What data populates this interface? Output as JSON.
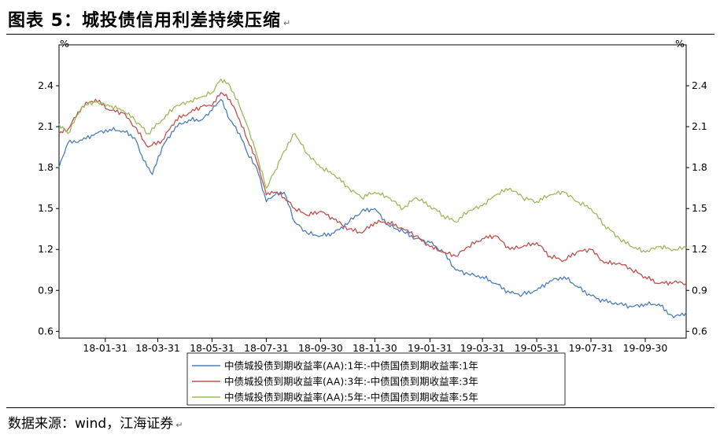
{
  "title": "图表 5：城投债信用利差持续压缩",
  "source": "数据来源：wind，江海证券",
  "chart_data": {
    "type": "line",
    "ylabel_left": "%",
    "ylabel_right": "%",
    "ylim": [
      0.55,
      2.7
    ],
    "yticks": [
      0.6,
      0.9,
      1.2,
      1.5,
      1.8,
      2.1,
      2.4
    ],
    "ytick_labels": [
      "0.6",
      "0.9",
      "1.2",
      "1.5",
      "1.8",
      "2.1",
      "2.4"
    ],
    "xlim": [
      "2017-12-10",
      "2019-11-15"
    ],
    "xticks": [
      "2018-01-31",
      "2018-03-31",
      "2018-05-31",
      "2018-07-31",
      "2018-09-30",
      "2018-11-30",
      "2019-01-31",
      "2019-03-31",
      "2019-05-31",
      "2019-07-31",
      "2019-09-30"
    ],
    "xtick_labels": [
      "18-01-31",
      "18-03-31",
      "18-05-31",
      "18-07-31",
      "18-09-30",
      "18-11-30",
      "19-01-31",
      "19-03-31",
      "19-05-31",
      "19-07-31",
      "19-09-30"
    ],
    "grid": false,
    "legend_position": "bottom",
    "series": [
      {
        "name": "中债城投债到期收益率(AA):1年:-中债国债到期收益率:1年",
        "color": "#4a7ebb",
        "x": [
          "2017-12-10",
          "2017-12-20",
          "2018-01-05",
          "2018-01-20",
          "2018-02-05",
          "2018-02-20",
          "2018-03-05",
          "2018-03-15",
          "2018-03-25",
          "2018-04-05",
          "2018-04-20",
          "2018-05-05",
          "2018-05-20",
          "2018-05-31",
          "2018-06-10",
          "2018-06-20",
          "2018-07-01",
          "2018-07-10",
          "2018-07-20",
          "2018-07-31",
          "2018-08-10",
          "2018-08-20",
          "2018-09-01",
          "2018-09-15",
          "2018-09-30",
          "2018-10-15",
          "2018-11-01",
          "2018-11-15",
          "2018-11-30",
          "2018-12-15",
          "2019-01-01",
          "2019-01-15",
          "2019-01-31",
          "2019-02-15",
          "2019-03-01",
          "2019-03-15",
          "2019-03-31",
          "2019-04-15",
          "2019-05-01",
          "2019-05-15",
          "2019-05-31",
          "2019-06-15",
          "2019-07-01",
          "2019-07-15",
          "2019-07-31",
          "2019-08-15",
          "2019-09-01",
          "2019-09-15",
          "2019-09-30",
          "2019-10-15",
          "2019-11-01",
          "2019-11-15"
        ],
        "values": [
          1.8,
          1.98,
          2.0,
          2.05,
          2.08,
          2.07,
          2.02,
          1.85,
          1.75,
          1.95,
          2.1,
          2.15,
          2.15,
          2.22,
          2.3,
          2.15,
          2.05,
          1.9,
          1.8,
          1.55,
          1.6,
          1.62,
          1.4,
          1.32,
          1.3,
          1.32,
          1.4,
          1.48,
          1.5,
          1.38,
          1.33,
          1.28,
          1.25,
          1.18,
          1.05,
          1.02,
          1.0,
          0.95,
          0.88,
          0.87,
          0.9,
          0.97,
          1.0,
          0.93,
          0.86,
          0.82,
          0.8,
          0.78,
          0.8,
          0.8,
          0.7,
          0.74
        ]
      },
      {
        "name": "中债城投债到期收益率(AA):3年:-中债国债到期收益率:3年",
        "color": "#c0504d",
        "x": [
          "2017-12-10",
          "2017-12-20",
          "2018-01-05",
          "2018-01-20",
          "2018-02-05",
          "2018-02-20",
          "2018-03-05",
          "2018-03-20",
          "2018-04-05",
          "2018-04-20",
          "2018-05-05",
          "2018-05-20",
          "2018-05-31",
          "2018-06-10",
          "2018-06-20",
          "2018-07-01",
          "2018-07-10",
          "2018-07-20",
          "2018-07-31",
          "2018-08-10",
          "2018-08-20",
          "2018-09-01",
          "2018-09-15",
          "2018-09-30",
          "2018-10-15",
          "2018-11-01",
          "2018-11-15",
          "2018-11-30",
          "2018-12-15",
          "2019-01-01",
          "2019-01-15",
          "2019-01-31",
          "2019-02-15",
          "2019-03-01",
          "2019-03-15",
          "2019-03-31",
          "2019-04-15",
          "2019-05-01",
          "2019-05-15",
          "2019-05-31",
          "2019-06-15",
          "2019-07-01",
          "2019-07-15",
          "2019-07-31",
          "2019-08-15",
          "2019-09-01",
          "2019-09-15",
          "2019-09-30",
          "2019-10-15",
          "2019-11-01",
          "2019-11-15"
        ],
        "values": [
          2.05,
          2.08,
          2.25,
          2.3,
          2.22,
          2.2,
          2.1,
          1.95,
          2.0,
          2.15,
          2.2,
          2.25,
          2.25,
          2.35,
          2.3,
          2.15,
          2.0,
          1.85,
          1.6,
          1.62,
          1.58,
          1.5,
          1.45,
          1.48,
          1.42,
          1.35,
          1.32,
          1.4,
          1.4,
          1.35,
          1.3,
          1.22,
          1.18,
          1.15,
          1.22,
          1.28,
          1.3,
          1.2,
          1.22,
          1.25,
          1.15,
          1.12,
          1.18,
          1.2,
          1.1,
          1.1,
          1.05,
          1.0,
          0.95,
          0.96,
          0.95
        ]
      },
      {
        "name": "中债城投债到期收益率(AA):5年:-中债国债到期收益率:5年",
        "color": "#9bbb59",
        "x": [
          "2017-12-10",
          "2017-12-20",
          "2018-01-05",
          "2018-01-20",
          "2018-02-05",
          "2018-02-20",
          "2018-03-05",
          "2018-03-20",
          "2018-04-05",
          "2018-04-20",
          "2018-05-05",
          "2018-05-20",
          "2018-05-31",
          "2018-06-10",
          "2018-06-20",
          "2018-07-01",
          "2018-07-10",
          "2018-07-20",
          "2018-07-31",
          "2018-08-10",
          "2018-08-20",
          "2018-09-01",
          "2018-09-15",
          "2018-09-30",
          "2018-10-15",
          "2018-11-01",
          "2018-11-15",
          "2018-11-30",
          "2018-12-15",
          "2019-01-01",
          "2019-01-15",
          "2019-01-31",
          "2019-02-15",
          "2019-03-01",
          "2019-03-15",
          "2019-03-31",
          "2019-04-15",
          "2019-05-01",
          "2019-05-15",
          "2019-05-31",
          "2019-06-15",
          "2019-07-01",
          "2019-07-15",
          "2019-07-31",
          "2019-08-15",
          "2019-09-01",
          "2019-09-15",
          "2019-09-30",
          "2019-10-15",
          "2019-11-01",
          "2019-11-15"
        ],
        "values": [
          2.12,
          2.05,
          2.25,
          2.28,
          2.25,
          2.22,
          2.15,
          2.05,
          2.15,
          2.25,
          2.28,
          2.32,
          2.35,
          2.45,
          2.4,
          2.25,
          2.1,
          1.9,
          1.65,
          1.78,
          1.92,
          2.05,
          1.9,
          1.8,
          1.75,
          1.65,
          1.58,
          1.62,
          1.58,
          1.5,
          1.58,
          1.52,
          1.45,
          1.4,
          1.48,
          1.52,
          1.6,
          1.65,
          1.58,
          1.55,
          1.6,
          1.62,
          1.55,
          1.5,
          1.38,
          1.28,
          1.22,
          1.18,
          1.22,
          1.2,
          1.21
        ]
      }
    ]
  }
}
